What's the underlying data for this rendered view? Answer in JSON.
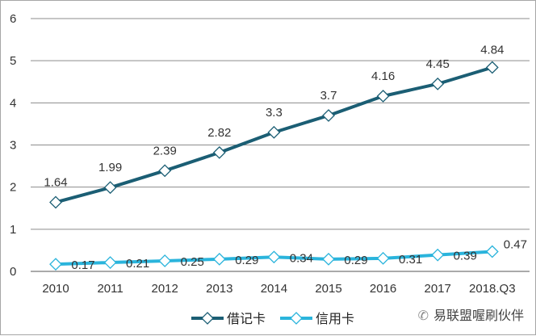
{
  "chart_data": {
    "type": "line",
    "categories": [
      "2010",
      "2011",
      "2012",
      "2013",
      "2014",
      "2015",
      "2016",
      "2017",
      "2018.Q3"
    ],
    "series": [
      {
        "name": "借记卡",
        "values": [
          1.64,
          1.99,
          2.39,
          2.82,
          3.3,
          3.7,
          4.16,
          4.45,
          4.84
        ],
        "labels": [
          "1.64",
          "1.99",
          "2.39",
          "2.82",
          "3.3",
          "3.7",
          "4.16",
          "4.45",
          "4.84"
        ],
        "color": "#1b5e74"
      },
      {
        "name": "信用卡",
        "values": [
          0.17,
          0.21,
          0.25,
          0.29,
          0.34,
          0.29,
          0.31,
          0.39,
          0.47
        ],
        "labels": [
          "0.17",
          "0.21",
          "0.25",
          "0.29",
          "0.34",
          "0.29",
          "0.31",
          "0.39",
          "0.47"
        ],
        "color": "#2ab4dc"
      }
    ],
    "yticks": [
      "0",
      "1",
      "2",
      "3",
      "4",
      "5",
      "6"
    ],
    "ylim": [
      0,
      6
    ],
    "grid": true,
    "legend": "bottom",
    "marker": "hollow-diamond"
  },
  "watermark": "易联盟喔刷伙伴"
}
